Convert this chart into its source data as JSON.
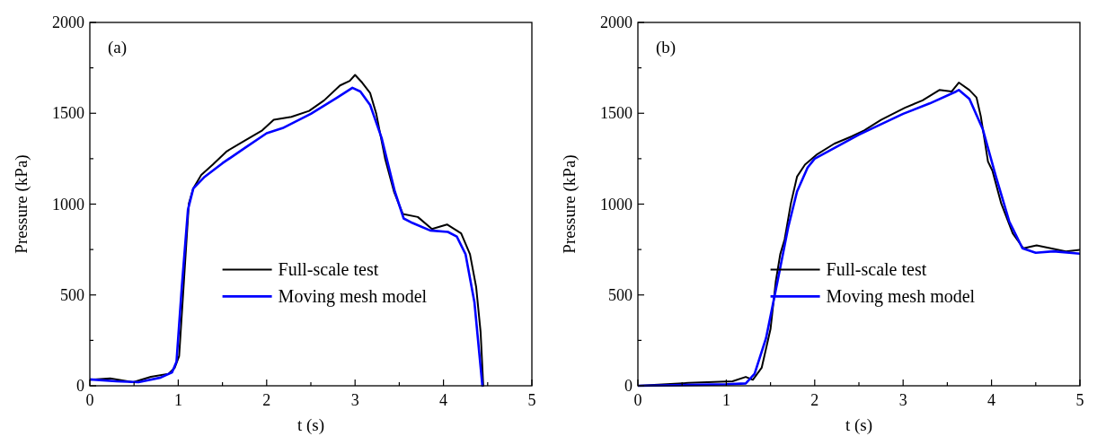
{
  "chart_data": [
    {
      "type": "line",
      "annotations": [
        "(a)"
      ],
      "xlabel": "t (s)",
      "ylabel": "Pressure (kPa)",
      "xlim": [
        0,
        5
      ],
      "ylim": [
        0,
        2000
      ],
      "xticks": [
        0,
        {
          "value": 0.5,
          "label": null
        },
        1,
        {
          "value": 1.5,
          "label": null
        },
        2,
        {
          "value": 2.5,
          "label": null
        },
        3,
        {
          "value": 3.5,
          "label": null
        },
        4,
        {
          "value": 4.5,
          "label": null
        },
        5
      ],
      "yticks": [
        0,
        {
          "value": 250,
          "label": null
        },
        500,
        {
          "value": 750,
          "label": null
        },
        1000,
        {
          "value": 1250,
          "label": null
        },
        1500,
        {
          "value": 1750,
          "label": null
        },
        2000
      ],
      "legend": "bottom right",
      "grid": false,
      "line_style": "solid",
      "marker": "none",
      "series": [
        {
          "name": "Full-scale test",
          "color": "#000000",
          "x": [
            0,
            0.23,
            0.49,
            0.69,
            0.89,
            0.96,
            1.01,
            1.06,
            1.12,
            1.17,
            1.26,
            1.39,
            1.55,
            1.75,
            1.95,
            2.08,
            2.28,
            2.48,
            2.65,
            2.83,
            2.94,
            3.0,
            3.08,
            3.17,
            3.24,
            3.34,
            3.44,
            3.54,
            3.71,
            3.87,
            4.04,
            4.2,
            4.3,
            4.37,
            4.42,
            4.45
          ],
          "values": [
            33,
            41,
            20,
            49,
            66,
            99,
            164,
            543,
            1003,
            1086,
            1160,
            1217,
            1291,
            1349,
            1406,
            1464,
            1480,
            1513,
            1571,
            1653,
            1678,
            1711,
            1669,
            1612,
            1497,
            1250,
            1069,
            946,
            929,
            863,
            888,
            839,
            724,
            543,
            296,
            0
          ]
        },
        {
          "name": "Moving mesh model",
          "color": "#0000ff",
          "x": [
            0,
            0.3,
            0.55,
            0.8,
            0.93,
            0.98,
            1.04,
            1.11,
            1.17,
            1.3,
            1.5,
            1.75,
            2.0,
            2.18,
            2.5,
            2.8,
            2.97,
            3.06,
            3.17,
            3.3,
            3.45,
            3.55,
            3.65,
            3.85,
            4.05,
            4.15,
            4.25,
            4.35,
            4.44
          ],
          "values": [
            35,
            25,
            20,
            45,
            74,
            132,
            543,
            970,
            1086,
            1151,
            1225,
            1308,
            1390,
            1418,
            1497,
            1587,
            1640,
            1620,
            1546,
            1365,
            1069,
            921,
            896,
            855,
            847,
            822,
            724,
            461,
            0
          ]
        }
      ]
    },
    {
      "type": "line",
      "annotations": [
        "(b)"
      ],
      "xlabel": "t (s)",
      "ylabel": "Pressure (kPa)",
      "xlim": [
        0,
        5
      ],
      "ylim": [
        0,
        2000
      ],
      "xticks": [
        0,
        {
          "value": 0.5,
          "label": null
        },
        1,
        {
          "value": 1.5,
          "label": null
        },
        2,
        {
          "value": 2.5,
          "label": null
        },
        3,
        {
          "value": 3.5,
          "label": null
        },
        4,
        {
          "value": 4.5,
          "label": null
        },
        5
      ],
      "yticks": [
        0,
        {
          "value": 250,
          "label": null
        },
        500,
        {
          "value": 750,
          "label": null
        },
        1000,
        {
          "value": 1250,
          "label": null
        },
        1500,
        {
          "value": 1750,
          "label": null
        },
        2000
      ],
      "legend": "bottom right",
      "grid": false,
      "line_style": "solid",
      "marker": "none",
      "series": [
        {
          "name": "Full-scale test",
          "color": "#000000",
          "x": [
            0,
            0.57,
            1.07,
            1.22,
            1.3,
            1.4,
            1.5,
            1.56,
            1.61,
            1.66,
            1.73,
            1.8,
            1.89,
            2.03,
            2.22,
            2.42,
            2.56,
            2.75,
            3.02,
            3.22,
            3.41,
            3.55,
            3.63,
            3.75,
            3.83,
            3.88,
            3.96,
            4.01,
            4.11,
            4.24,
            4.36,
            4.51,
            4.67,
            4.84,
            5.0
          ],
          "values": [
            0,
            16,
            25,
            49,
            33,
            99,
            312,
            576,
            724,
            806,
            1003,
            1151,
            1217,
            1275,
            1332,
            1373,
            1406,
            1464,
            1530,
            1571,
            1628,
            1620,
            1669,
            1628,
            1587,
            1480,
            1234,
            1184,
            1003,
            839,
            757,
            773,
            757,
            740,
            748
          ]
        },
        {
          "name": "Moving mesh model",
          "color": "#0000ff",
          "x": [
            0,
            1.0,
            1.22,
            1.32,
            1.45,
            1.58,
            1.7,
            1.8,
            1.92,
            2.0,
            2.5,
            3.0,
            3.3,
            3.6,
            3.63,
            3.75,
            3.9,
            4.05,
            4.2,
            4.35,
            4.5,
            4.7,
            5.0
          ],
          "values": [
            0,
            8,
            13,
            66,
            263,
            576,
            872,
            1069,
            1201,
            1250,
            1382,
            1497,
            1554,
            1620,
            1628,
            1579,
            1414,
            1151,
            905,
            757,
            732,
            740,
            727
          ]
        }
      ]
    }
  ]
}
